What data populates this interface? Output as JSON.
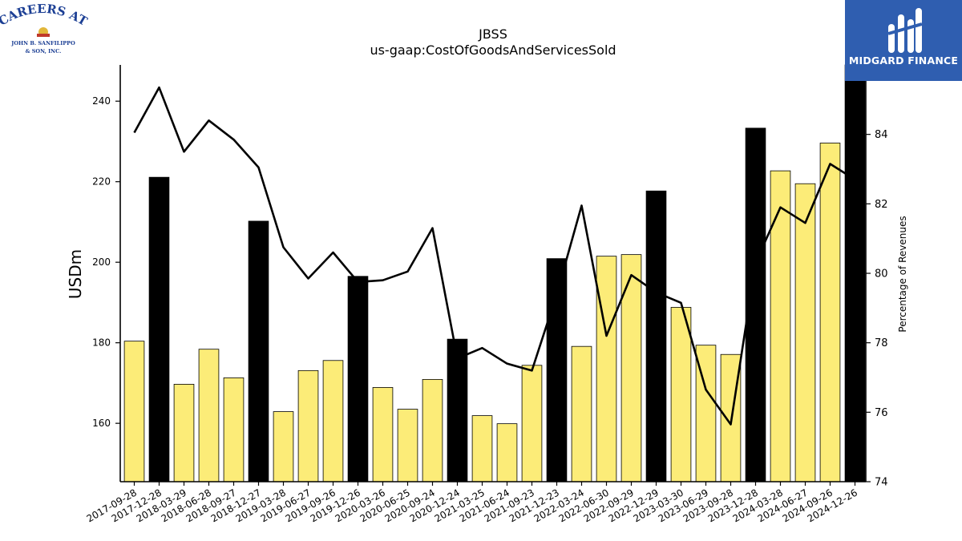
{
  "logos": {
    "left": {
      "line1": "CAREERS AT",
      "line2": "JOHN B. SANFILIPPO",
      "line3": "& SON, INC."
    },
    "right": {
      "brand": "MIDGARD FINANCE"
    }
  },
  "chart_data": {
    "type": "bar",
    "title": "JBSS",
    "subtitle": "us-gaap:CostOfGoodsAndServicesSold",
    "ylabel": "USDm",
    "y2label": "Percentage of Revenues",
    "ylim": [
      145.5,
      249
    ],
    "y2lim": [
      74,
      86
    ],
    "yticks": [
      160,
      180,
      200,
      220,
      240
    ],
    "y2ticks": [
      74,
      76,
      78,
      80,
      82,
      84
    ],
    "categories": [
      "2017-09-28",
      "2017-12-28",
      "2018-03-29",
      "2018-06-28",
      "2018-09-27",
      "2018-12-27",
      "2019-03-28",
      "2019-06-27",
      "2019-09-26",
      "2019-12-26",
      "2020-03-26",
      "2020-06-25",
      "2020-09-24",
      "2020-12-24",
      "2021-03-25",
      "2021-06-24",
      "2021-09-23",
      "2021-12-23",
      "2022-03-24",
      "2022-06-30",
      "2022-09-29",
      "2022-12-29",
      "2023-03-30",
      "2023-06-29",
      "2023-09-28",
      "2023-12-28",
      "2024-03-28",
      "2024-06-27",
      "2024-09-26",
      "2024-12-26"
    ],
    "series": [
      {
        "type": "bar",
        "values": [
          180.4,
          221.1,
          169.7,
          178.4,
          171.3,
          210.2,
          162.9,
          173.1,
          175.6,
          196.5,
          168.9,
          163.5,
          170.9,
          180.9,
          161.9,
          159.9,
          174.4,
          200.9,
          179.1,
          201.5,
          201.9,
          217.7,
          188.8,
          179.4,
          177.1,
          233.3,
          222.7,
          219.5,
          229.6,
          249.0
        ],
        "colors": [
          "#fcec78",
          "#000000",
          "#fcec78",
          "#fcec78",
          "#fcec78",
          "#000000",
          "#fcec78",
          "#fcec78",
          "#fcec78",
          "#000000",
          "#fcec78",
          "#fcec78",
          "#fcec78",
          "#000000",
          "#fcec78",
          "#fcec78",
          "#fcec78",
          "#000000",
          "#fcec78",
          "#fcec78",
          "#fcec78",
          "#000000",
          "#fcec78",
          "#fcec78",
          "#fcec78",
          "#000000",
          "#fcec78",
          "#fcec78",
          "#fcec78",
          "#000000"
        ]
      },
      {
        "type": "line",
        "axis": "right",
        "color": "#000000",
        "values": [
          84.05,
          85.35,
          83.5,
          84.4,
          83.85,
          83.05,
          80.75,
          79.85,
          80.6,
          79.75,
          79.8,
          80.05,
          81.3,
          77.55,
          77.85,
          77.4,
          77.2,
          79.4,
          81.95,
          78.2,
          79.95,
          79.45,
          79.15,
          76.65,
          75.65,
          80.3,
          81.9,
          81.45,
          83.15,
          82.7
        ]
      }
    ]
  }
}
